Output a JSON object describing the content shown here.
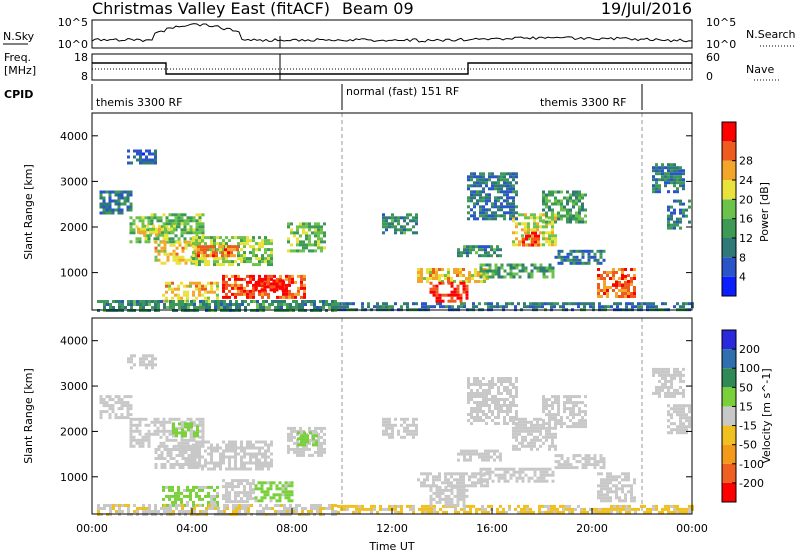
{
  "header": {
    "title": "Christmas Valley East (fitACF)",
    "beam": "Beam 09",
    "date": "19/Jul/2016"
  },
  "top_panels": {
    "nsky_label": "N.Sky",
    "nsky_ticks_left": [
      "10^5",
      "10^0"
    ],
    "nsky_ticks_right": [
      "10^5",
      "10^0"
    ],
    "nsearch_label": "N.Search",
    "freq_label_1": "Freq.",
    "freq_label_2": "[MHz]",
    "freq_ticks_left": [
      "18",
      "8"
    ],
    "freq_ticks_right": [
      "60",
      "0"
    ],
    "nave_label": "Nave",
    "cpid_label": "CPID",
    "cpid_segments": [
      {
        "label": "themis 3300 RF"
      },
      {
        "label": "normal (fast) 151 RF"
      },
      {
        "label": "themis 3300 RF"
      }
    ]
  },
  "colors": {
    "power_scale": [
      "#0a1eff",
      "#2a55c8",
      "#2f7a78",
      "#3d9a55",
      "#6cc24a",
      "#e8e23a",
      "#f4a62a",
      "#ef5a1e",
      "#ff0000"
    ],
    "velocity_scale": [
      "#2a2adc",
      "#2f6fb0",
      "#2f8a55",
      "#7ad03a",
      "#c8c8c8",
      "#f0c020",
      "#f39a1a",
      "#f06020",
      "#ff0000"
    ]
  },
  "chart_data": [
    {
      "type": "heatmap",
      "panel": "power",
      "ylabel": "Slant Range [km]",
      "ylim": [
        180,
        4500
      ],
      "yticks": [
        "1000",
        "2000",
        "3000",
        "4000"
      ],
      "xlim": [
        0,
        24
      ],
      "colorbar_label": "Power [dB]",
      "colorbar_ticks": [
        "4",
        "8",
        "12",
        "16",
        "20",
        "24",
        "28"
      ],
      "colorbar_range": [
        0,
        30
      ],
      "regions": [
        {
          "t0": 0.3,
          "t1": 1.6,
          "r0": 2300,
          "r1": 2800,
          "value": 8
        },
        {
          "t0": 1.4,
          "t1": 2.6,
          "r0": 3400,
          "r1": 3700,
          "value": 6
        },
        {
          "t0": 1.5,
          "t1": 4.5,
          "r0": 1700,
          "r1": 2300,
          "value": 14
        },
        {
          "t0": 1.8,
          "t1": 3.3,
          "r0": 1800,
          "r1": 2050,
          "value": 18
        },
        {
          "t0": 2.5,
          "t1": 4.2,
          "r0": 1200,
          "r1": 1700,
          "value": 20
        },
        {
          "t0": 4.0,
          "t1": 7.2,
          "r0": 1200,
          "r1": 1800,
          "value": 16
        },
        {
          "t0": 4.2,
          "t1": 5.8,
          "r0": 1350,
          "r1": 1600,
          "value": 24
        },
        {
          "t0": 2.8,
          "t1": 5.0,
          "r0": 400,
          "r1": 800,
          "value": 20
        },
        {
          "t0": 5.2,
          "t1": 8.5,
          "r0": 450,
          "r1": 950,
          "value": 26
        },
        {
          "t0": 6.5,
          "t1": 7.8,
          "r0": 600,
          "r1": 850,
          "value": 29
        },
        {
          "t0": 7.8,
          "t1": 9.3,
          "r0": 1500,
          "r1": 2100,
          "value": 14
        },
        {
          "t0": 0.2,
          "t1": 9.8,
          "r0": 200,
          "r1": 400,
          "value": 10
        },
        {
          "t0": 9.8,
          "t1": 24.0,
          "r0": 200,
          "r1": 350,
          "value": 8
        },
        {
          "t0": 11.6,
          "t1": 13.0,
          "r0": 1900,
          "r1": 2300,
          "value": 10
        },
        {
          "t0": 13.0,
          "t1": 15.8,
          "r0": 800,
          "r1": 1100,
          "value": 20
        },
        {
          "t0": 13.5,
          "t1": 15.0,
          "r0": 400,
          "r1": 800,
          "value": 28
        },
        {
          "t0": 15.5,
          "t1": 18.5,
          "r0": 900,
          "r1": 1200,
          "value": 12
        },
        {
          "t0": 14.6,
          "t1": 16.4,
          "r0": 1400,
          "r1": 1600,
          "value": 10
        },
        {
          "t0": 16.8,
          "t1": 18.5,
          "r0": 1600,
          "r1": 2300,
          "value": 18
        },
        {
          "t0": 17.2,
          "t1": 17.9,
          "r0": 1600,
          "r1": 1900,
          "value": 26
        },
        {
          "t0": 15.0,
          "t1": 17.0,
          "r0": 2200,
          "r1": 3200,
          "value": 8
        },
        {
          "t0": 18.0,
          "t1": 19.8,
          "r0": 2100,
          "r1": 2800,
          "value": 12
        },
        {
          "t0": 18.5,
          "t1": 20.5,
          "r0": 1200,
          "r1": 1500,
          "value": 8
        },
        {
          "t0": 20.2,
          "t1": 21.7,
          "r0": 500,
          "r1": 1100,
          "value": 24
        },
        {
          "t0": 20.8,
          "t1": 21.4,
          "r0": 700,
          "r1": 950,
          "value": 29
        },
        {
          "t0": 22.4,
          "t1": 23.6,
          "r0": 2800,
          "r1": 3400,
          "value": 8
        },
        {
          "t0": 23.0,
          "t1": 23.9,
          "r0": 2000,
          "r1": 2600,
          "value": 8
        }
      ]
    },
    {
      "type": "heatmap",
      "panel": "velocity",
      "ylabel": "Slant Range [km]",
      "ylim": [
        180,
        4500
      ],
      "yticks": [
        "1000",
        "2000",
        "3000",
        "4000"
      ],
      "xlim": [
        0,
        24
      ],
      "xlabel": "Time UT",
      "xticks": [
        "00:00",
        "04:00",
        "08:00",
        "12:00",
        "16:00",
        "20:00",
        "00:00"
      ],
      "colorbar_label": "Velocity [m s^-1]",
      "colorbar_ticks": [
        "200",
        "100",
        "50",
        "15",
        "-15",
        "-50",
        "-100",
        "-200"
      ],
      "colorbar_range": [
        -250,
        250
      ],
      "regions": [
        {
          "t0": 0.3,
          "t1": 1.6,
          "r0": 2300,
          "r1": 2800,
          "value": 0
        },
        {
          "t0": 1.4,
          "t1": 2.6,
          "r0": 3400,
          "r1": 3700,
          "value": 0
        },
        {
          "t0": 1.5,
          "t1": 4.5,
          "r0": 1700,
          "r1": 2300,
          "value": 0
        },
        {
          "t0": 3.2,
          "t1": 4.2,
          "r0": 1900,
          "r1": 2200,
          "value": 40
        },
        {
          "t0": 2.5,
          "t1": 4.2,
          "r0": 1200,
          "r1": 1700,
          "value": 0
        },
        {
          "t0": 4.0,
          "t1": 7.2,
          "r0": 1200,
          "r1": 1800,
          "value": 0
        },
        {
          "t0": 2.8,
          "t1": 5.0,
          "r0": 400,
          "r1": 800,
          "value": 40
        },
        {
          "t0": 5.2,
          "t1": 6.5,
          "r0": 450,
          "r1": 950,
          "value": 0
        },
        {
          "t0": 6.5,
          "t1": 8.0,
          "r0": 500,
          "r1": 900,
          "value": 40
        },
        {
          "t0": 7.8,
          "t1": 9.3,
          "r0": 1500,
          "r1": 2100,
          "value": 0
        },
        {
          "t0": 8.2,
          "t1": 9.0,
          "r0": 1700,
          "r1": 2000,
          "value": 40
        },
        {
          "t0": 0.2,
          "t1": 9.8,
          "r0": 200,
          "r1": 400,
          "value": -20
        },
        {
          "t0": 9.8,
          "t1": 24.0,
          "r0": 200,
          "r1": 380,
          "value": -35
        },
        {
          "t0": 11.6,
          "t1": 13.0,
          "r0": 1900,
          "r1": 2300,
          "value": 0
        },
        {
          "t0": 13.0,
          "t1": 15.8,
          "r0": 800,
          "r1": 1100,
          "value": 0
        },
        {
          "t0": 13.5,
          "t1": 15.0,
          "r0": 400,
          "r1": 800,
          "value": 0
        },
        {
          "t0": 15.5,
          "t1": 18.5,
          "r0": 900,
          "r1": 1200,
          "value": 0
        },
        {
          "t0": 14.6,
          "t1": 16.4,
          "r0": 1400,
          "r1": 1600,
          "value": 0
        },
        {
          "t0": 16.8,
          "t1": 18.5,
          "r0": 1600,
          "r1": 2300,
          "value": 0
        },
        {
          "t0": 15.0,
          "t1": 17.0,
          "r0": 2200,
          "r1": 3200,
          "value": 0
        },
        {
          "t0": 18.0,
          "t1": 19.8,
          "r0": 2100,
          "r1": 2800,
          "value": 0
        },
        {
          "t0": 18.5,
          "t1": 20.5,
          "r0": 1200,
          "r1": 1500,
          "value": 0
        },
        {
          "t0": 20.2,
          "t1": 21.7,
          "r0": 500,
          "r1": 1100,
          "value": 0
        },
        {
          "t0": 22.4,
          "t1": 23.6,
          "r0": 2800,
          "r1": 3400,
          "value": 0
        },
        {
          "t0": 23.0,
          "t1": 23.9,
          "r0": 2000,
          "r1": 2600,
          "value": 0
        }
      ]
    }
  ]
}
